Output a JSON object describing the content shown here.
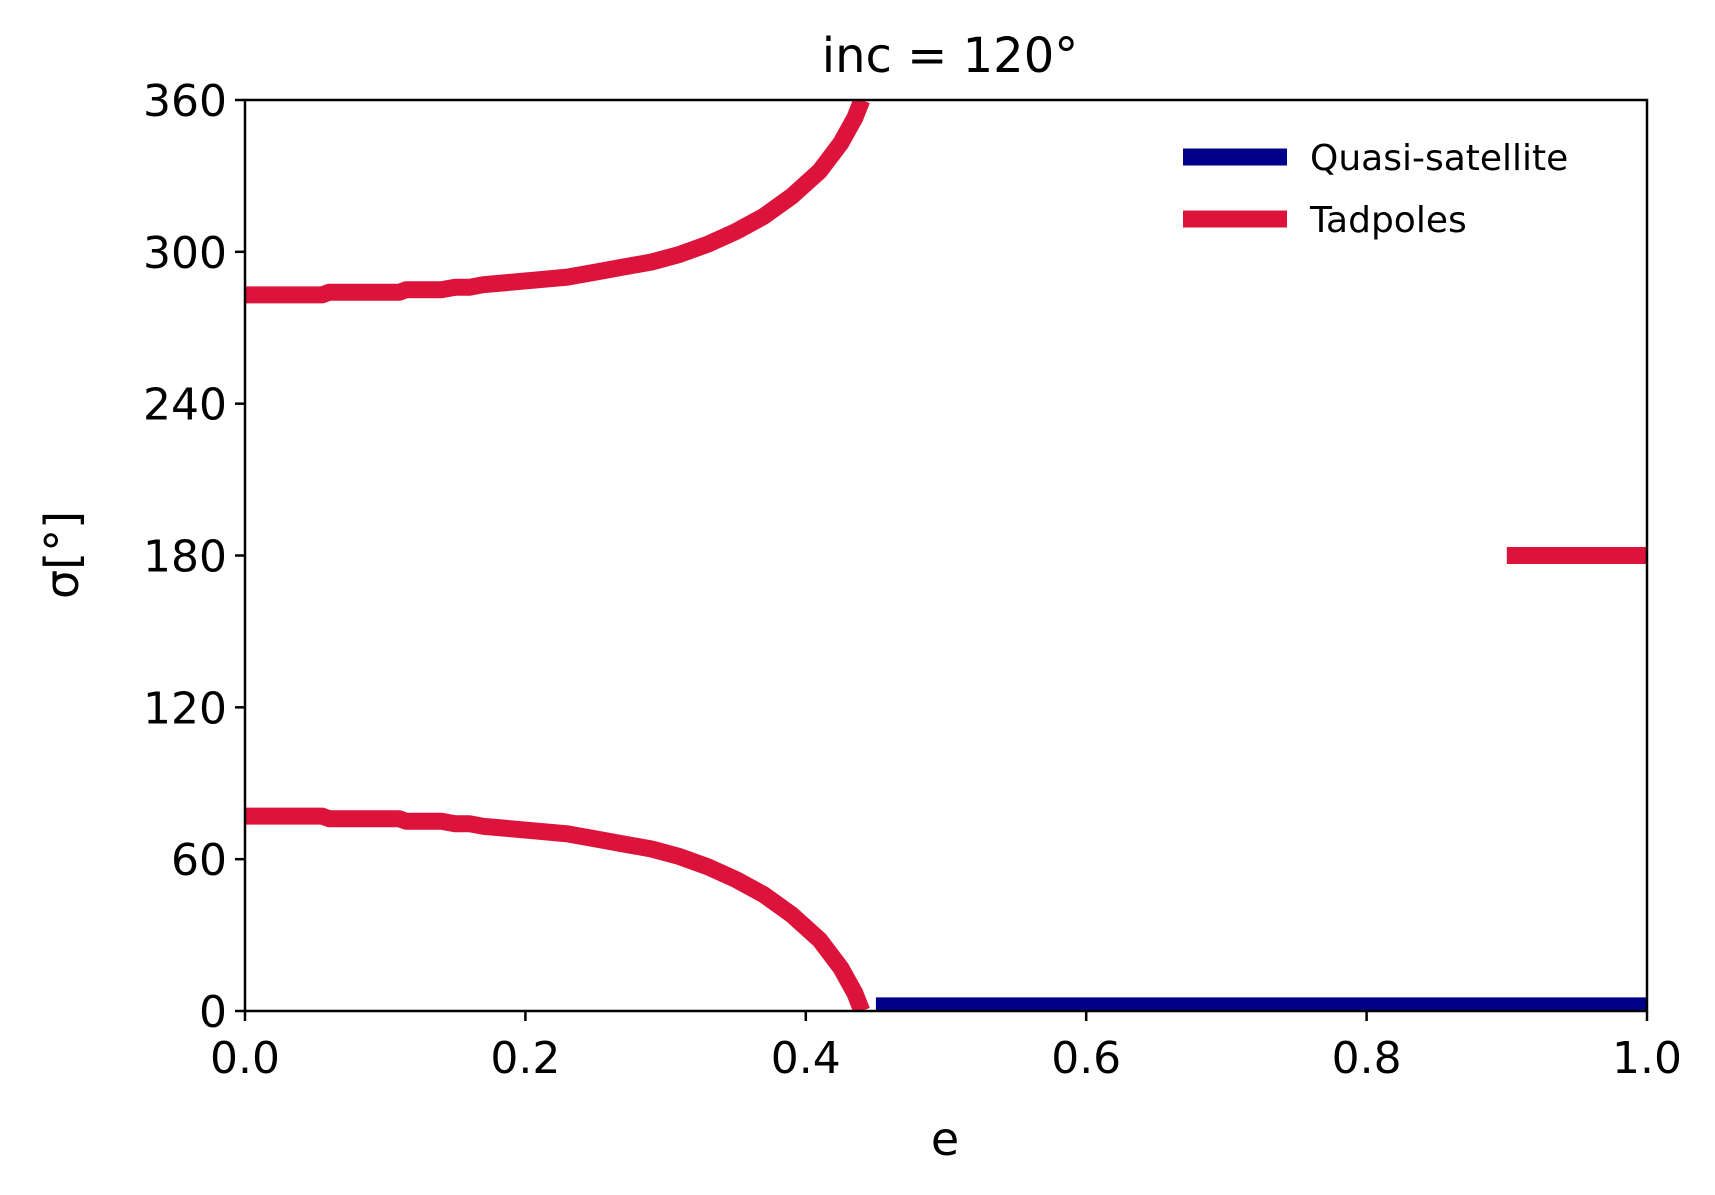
{
  "chart_data": {
    "type": "line",
    "title": "inc = 120°",
    "xlabel": "e",
    "ylabel": "σ[°]",
    "xlim": [
      0.0,
      1.0
    ],
    "ylim": [
      0,
      360
    ],
    "xticks": [
      "0.0",
      "0.2",
      "0.4",
      "0.6",
      "0.8",
      "1.0"
    ],
    "yticks": [
      "0",
      "60",
      "120",
      "180",
      "240",
      "300",
      "360"
    ],
    "grid": false,
    "legend_position": "upper-right",
    "legend": [
      {
        "label": "Quasi-satellite",
        "color": "#00008b"
      },
      {
        "label": "Tadpoles",
        "color": "#dc143c"
      }
    ],
    "series": [
      {
        "name": "Quasi-satellite",
        "color": "#00008b",
        "segments": [
          [
            [
              0.45,
              2
            ],
            [
              1.0,
              2
            ]
          ]
        ]
      },
      {
        "name": "Tadpoles",
        "color": "#dc143c",
        "segments": [
          [
            [
              0.0,
              283
            ],
            [
              0.055,
              283
            ],
            [
              0.06,
              284
            ],
            [
              0.11,
              284
            ],
            [
              0.115,
              285
            ],
            [
              0.14,
              285
            ],
            [
              0.15,
              286
            ],
            [
              0.16,
              286
            ],
            [
              0.17,
              287
            ],
            [
              0.19,
              288
            ],
            [
              0.21,
              289
            ],
            [
              0.23,
              290
            ],
            [
              0.25,
              292
            ],
            [
              0.27,
              294
            ],
            [
              0.29,
              296
            ],
            [
              0.31,
              299
            ],
            [
              0.33,
              303
            ],
            [
              0.35,
              308
            ],
            [
              0.37,
              314
            ],
            [
              0.39,
              322
            ],
            [
              0.41,
              332
            ],
            [
              0.425,
              343
            ],
            [
              0.435,
              353
            ],
            [
              0.44,
              360
            ]
          ],
          [
            [
              0.0,
              77
            ],
            [
              0.055,
              77
            ],
            [
              0.06,
              76
            ],
            [
              0.11,
              76
            ],
            [
              0.115,
              75
            ],
            [
              0.14,
              75
            ],
            [
              0.15,
              74
            ],
            [
              0.16,
              74
            ],
            [
              0.17,
              73
            ],
            [
              0.19,
              72
            ],
            [
              0.21,
              71
            ],
            [
              0.23,
              70
            ],
            [
              0.25,
              68
            ],
            [
              0.27,
              66
            ],
            [
              0.29,
              64
            ],
            [
              0.31,
              61
            ],
            [
              0.33,
              57
            ],
            [
              0.35,
              52
            ],
            [
              0.37,
              46
            ],
            [
              0.39,
              38
            ],
            [
              0.41,
              28
            ],
            [
              0.425,
              17
            ],
            [
              0.435,
              7
            ],
            [
              0.44,
              0
            ]
          ],
          [
            [
              0.9,
              180
            ],
            [
              1.0,
              180
            ]
          ]
        ]
      }
    ]
  }
}
